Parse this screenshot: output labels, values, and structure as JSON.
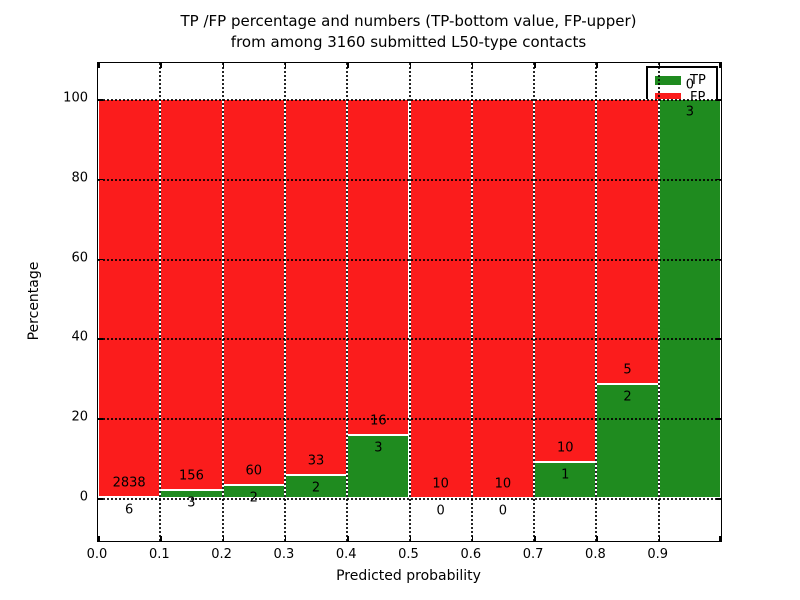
{
  "chart_data": {
    "type": "bar",
    "stacked": true,
    "title_line1": "TP /FP percentage and numbers (TP-bottom value, FP-upper)",
    "title_line2": "from among 3160 submitted L50-type contacts",
    "xlabel": "Predicted probability",
    "ylabel": "Percentage",
    "total_contacts": 3160,
    "bin_width": 0.1,
    "bin_starts": [
      0.0,
      0.1,
      0.2,
      0.3,
      0.4,
      0.5,
      0.6,
      0.7,
      0.8,
      0.9
    ],
    "series": [
      {
        "name": "TP",
        "color": "#1f8b1f",
        "counts": [
          6,
          3,
          2,
          2,
          3,
          0,
          0,
          1,
          2,
          3
        ]
      },
      {
        "name": "FP",
        "color": "#fb1c1c",
        "counts": [
          2838,
          156,
          60,
          33,
          16,
          10,
          10,
          10,
          5,
          0
        ]
      }
    ],
    "tp_percentages": [
      0.21,
      1.89,
      3.23,
      5.71,
      15.79,
      0.0,
      0.0,
      9.09,
      28.57,
      100.0
    ],
    "xticks": [
      "0.0",
      "0.1",
      "0.2",
      "0.3",
      "0.4",
      "0.5",
      "0.6",
      "0.7",
      "0.8",
      "0.9"
    ],
    "xtick_values": [
      0.0,
      0.1,
      0.2,
      0.3,
      0.4,
      0.5,
      0.6,
      0.7,
      0.8,
      0.9
    ],
    "yticks": [
      "0",
      "20",
      "40",
      "60",
      "80",
      "100"
    ],
    "ytick_values": [
      0,
      20,
      40,
      60,
      80,
      100
    ],
    "xlim": [
      0.0,
      1.0
    ],
    "ylim": [
      -10.8,
      109.3
    ],
    "grid": true,
    "grid_style": "dotted",
    "legend": {
      "position": "upper right",
      "entries": [
        {
          "label": "TP",
          "color": "#1f8b1f"
        },
        {
          "label": "FP",
          "color": "#fb1c1c"
        }
      ]
    }
  }
}
